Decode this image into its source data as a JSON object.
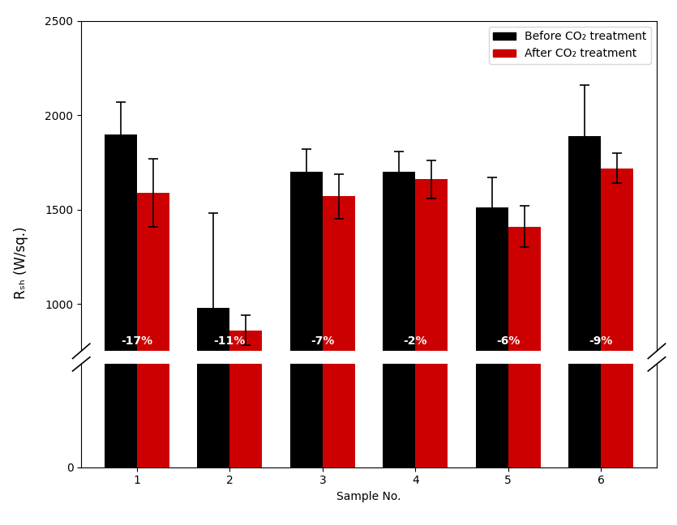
{
  "chart_data": {
    "type": "bar",
    "categories": [
      "1",
      "2",
      "3",
      "4",
      "5",
      "6"
    ],
    "series": [
      {
        "name": "Before CO₂ treatment",
        "color": "#000000",
        "values": [
          1900,
          980,
          1700,
          1700,
          1510,
          1890
        ],
        "errors": [
          170,
          500,
          120,
          110,
          160,
          270
        ]
      },
      {
        "name": "After CO₂ treatment",
        "color": "#cc0000",
        "values": [
          1590,
          860,
          1570,
          1660,
          1410,
          1720
        ],
        "errors": [
          180,
          80,
          120,
          100,
          110,
          80
        ]
      }
    ],
    "annotations": [
      "-17%",
      "-11%",
      "-7%",
      "-2%",
      "-6%",
      "-9%"
    ],
    "xlabel": "Sample No.",
    "ylabel": "Rₛₕ (W/sq.)",
    "ylim": [
      [
        0,
        600
      ],
      [
        750,
        2500
      ]
    ],
    "yticks": [
      [
        0
      ],
      [
        1000,
        1500,
        2000,
        2500
      ]
    ],
    "legend": "upper right",
    "grid": false
  }
}
